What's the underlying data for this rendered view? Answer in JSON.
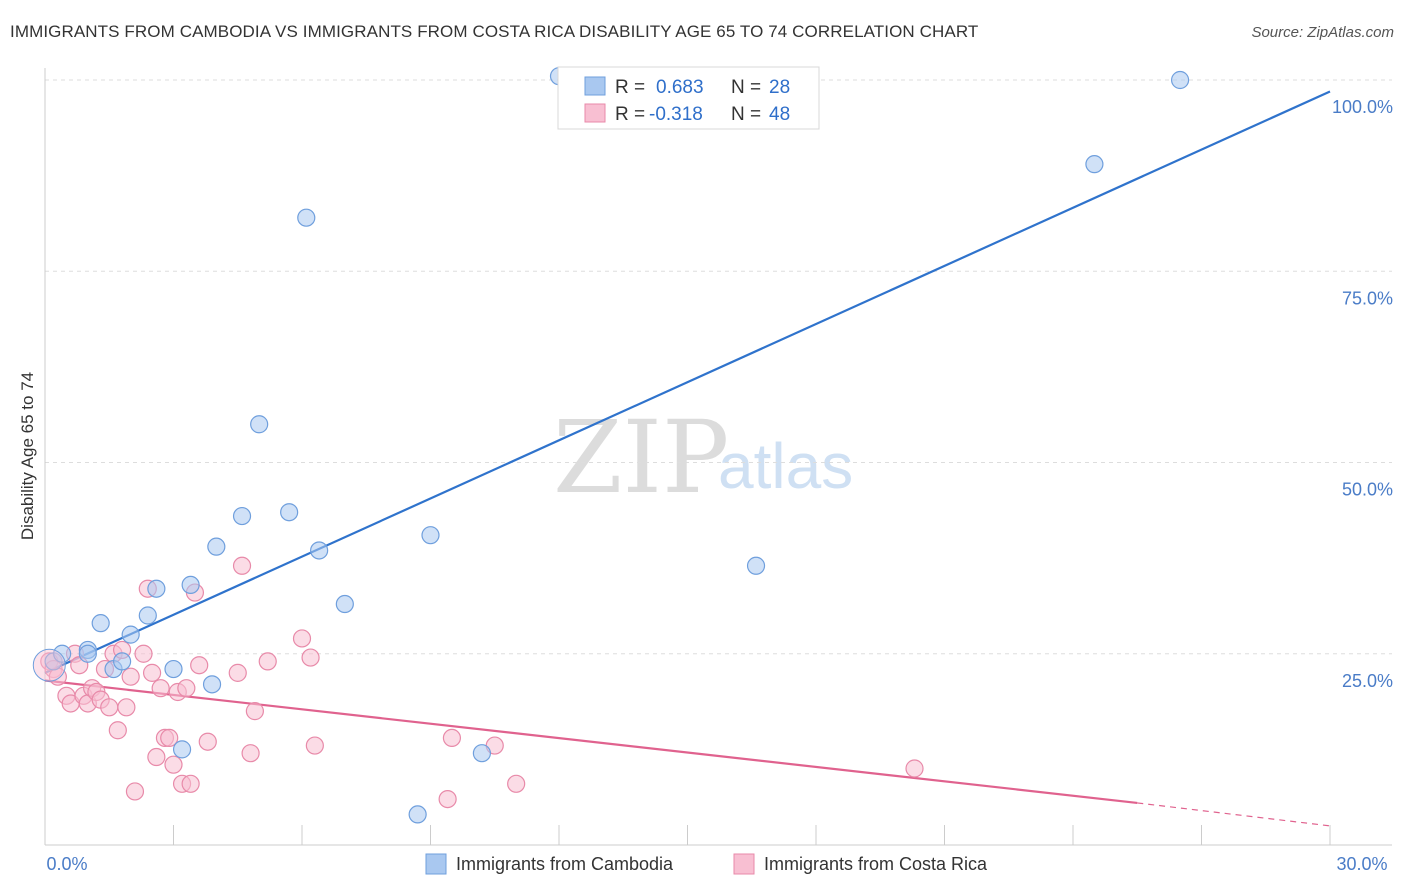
{
  "title": "IMMIGRANTS FROM CAMBODIA VS IMMIGRANTS FROM COSTA RICA DISABILITY AGE 65 TO 74 CORRELATION CHART",
  "source": "Source: ZipAtlas.com",
  "watermark": {
    "zip": "ZIP",
    "atlas": "atlas"
  },
  "legend": {
    "series1": {
      "r_label": "R =",
      "r_value": "0.683",
      "n_label": "N =",
      "n_value": "28"
    },
    "series2": {
      "r_label": "R =",
      "r_value": "-0.318",
      "n_label": "N =",
      "n_value": "48"
    }
  },
  "colors": {
    "cambodia_fill": "#a9c8f0",
    "cambodia_stroke": "#6f9fdd",
    "cambodia_line": "#2f73cc",
    "costarica_fill": "#f8bfd2",
    "costarica_stroke": "#e88aa9",
    "costarica_line": "#e0628e",
    "grid": "#dddddd",
    "axis_text": "#4a7cc7"
  },
  "chart_data": {
    "type": "scatter",
    "title": "IMMIGRANTS FROM CAMBODIA VS IMMIGRANTS FROM COSTA RICA DISABILITY AGE 65 TO 74 CORRELATION CHART",
    "xlabel": "",
    "ylabel": "Disability Age 65 to 74",
    "xlim": [
      0,
      30
    ],
    "ylim": [
      0,
      102
    ],
    "x_ticks": [
      {
        "value": 0,
        "label": "0.0%"
      },
      {
        "value": 30,
        "label": "30.0%"
      }
    ],
    "x_minor_ticks": [
      0,
      3,
      6,
      9,
      12,
      15,
      18,
      21,
      24,
      27,
      30
    ],
    "y_ticks": [
      {
        "value": 25,
        "label": "25.0%"
      },
      {
        "value": 50,
        "label": "50.0%"
      },
      {
        "value": 75,
        "label": "75.0%"
      },
      {
        "value": 100,
        "label": "100.0%"
      }
    ],
    "grid": true,
    "legend_position": "top-center",
    "series": [
      {
        "name": "Immigrants from Cambodia",
        "color": "#6f9fdd",
        "points": [
          [
            0.2,
            24.0
          ],
          [
            0.4,
            25.0
          ],
          [
            1.0,
            25.5
          ],
          [
            1.0,
            25.0
          ],
          [
            1.3,
            29.0
          ],
          [
            1.6,
            23.0
          ],
          [
            1.8,
            24.0
          ],
          [
            2.0,
            27.5
          ],
          [
            2.4,
            30.0
          ],
          [
            2.6,
            33.5
          ],
          [
            3.0,
            23.0
          ],
          [
            3.2,
            12.5
          ],
          [
            3.4,
            34.0
          ],
          [
            3.9,
            21.0
          ],
          [
            4.0,
            39.0
          ],
          [
            4.6,
            43.0
          ],
          [
            5.0,
            55.0
          ],
          [
            5.7,
            43.5
          ],
          [
            6.1,
            82.0
          ],
          [
            6.4,
            38.5
          ],
          [
            7.0,
            31.5
          ],
          [
            8.7,
            4.0
          ],
          [
            9.0,
            40.5
          ],
          [
            10.2,
            12.0
          ],
          [
            12.0,
            100.5
          ],
          [
            16.6,
            36.5
          ],
          [
            24.5,
            89.0
          ],
          [
            26.5,
            100.0
          ]
        ],
        "trend": {
          "x": [
            0,
            30
          ],
          "y": [
            22.5,
            98.5
          ]
        }
      },
      {
        "name": "Immigrants from Costa Rica",
        "color": "#e88aa9",
        "points": [
          [
            0.1,
            24.0
          ],
          [
            0.2,
            23.0
          ],
          [
            0.3,
            22.0
          ],
          [
            0.5,
            19.5
          ],
          [
            0.6,
            18.5
          ],
          [
            0.7,
            25.0
          ],
          [
            0.8,
            23.5
          ],
          [
            0.9,
            19.5
          ],
          [
            1.0,
            18.5
          ],
          [
            1.1,
            20.5
          ],
          [
            1.2,
            20.0
          ],
          [
            1.3,
            19.0
          ],
          [
            1.4,
            23.0
          ],
          [
            1.5,
            18.0
          ],
          [
            1.6,
            25.0
          ],
          [
            1.7,
            15.0
          ],
          [
            1.8,
            25.5
          ],
          [
            1.9,
            18.0
          ],
          [
            2.0,
            22.0
          ],
          [
            2.1,
            7.0
          ],
          [
            2.3,
            25.0
          ],
          [
            2.4,
            33.5
          ],
          [
            2.5,
            22.5
          ],
          [
            2.6,
            11.5
          ],
          [
            2.7,
            20.5
          ],
          [
            2.8,
            14.0
          ],
          [
            2.9,
            14.0
          ],
          [
            3.0,
            10.5
          ],
          [
            3.1,
            20.0
          ],
          [
            3.2,
            8.0
          ],
          [
            3.3,
            20.5
          ],
          [
            3.4,
            8.0
          ],
          [
            3.5,
            33.0
          ],
          [
            3.6,
            23.5
          ],
          [
            3.8,
            13.5
          ],
          [
            4.5,
            22.5
          ],
          [
            4.6,
            36.5
          ],
          [
            4.8,
            12.0
          ],
          [
            4.9,
            17.5
          ],
          [
            5.2,
            24.0
          ],
          [
            6.0,
            27.0
          ],
          [
            6.2,
            24.5
          ],
          [
            6.3,
            13.0
          ],
          [
            9.4,
            6.0
          ],
          [
            9.5,
            14.0
          ],
          [
            10.5,
            13.0
          ],
          [
            11.0,
            8.0
          ],
          [
            20.3,
            10.0
          ]
        ],
        "trend": {
          "x": [
            0,
            25.5
          ],
          "y": [
            21.5,
            5.5
          ]
        },
        "trend_dashed": {
          "x": [
            25.5,
            30
          ],
          "y": [
            5.5,
            2.5
          ]
        }
      }
    ]
  },
  "bottom_legend": {
    "items": [
      {
        "label": "Immigrants from Cambodia"
      },
      {
        "label": "Immigrants from Costa Rica"
      }
    ]
  }
}
